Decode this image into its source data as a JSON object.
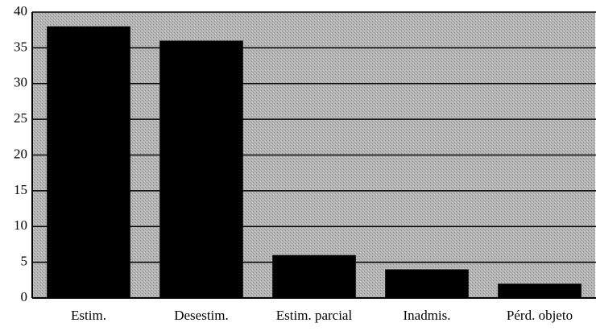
{
  "chart_data": {
    "type": "bar",
    "categories": [
      "Estim.",
      "Desestim.",
      "Estim. parcial",
      "Inadmis.",
      "Pérd. objeto"
    ],
    "values": [
      38,
      36,
      6,
      4,
      2
    ],
    "color": "#000000",
    "ylim": [
      0,
      40
    ],
    "yticks": [
      0,
      5,
      10,
      15,
      20,
      25,
      30,
      35,
      40
    ],
    "grid": true
  }
}
